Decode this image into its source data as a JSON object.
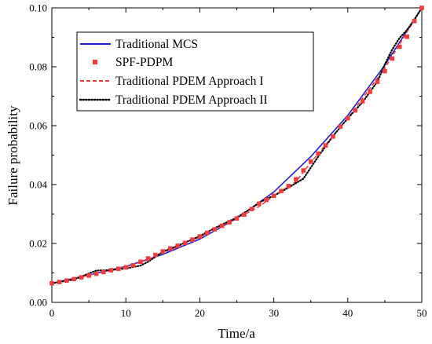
{
  "chart_data": {
    "type": "line",
    "title": "",
    "xlabel": "Time/a",
    "ylabel": "Failure probability",
    "xlim": [
      0,
      50
    ],
    "ylim": [
      0,
      0.1
    ],
    "xticks": [
      0,
      10,
      20,
      30,
      40,
      50
    ],
    "xtick_labels": [
      "0",
      "10",
      "20",
      "30",
      "40",
      "50"
    ],
    "yticks": [
      0,
      0.02,
      0.04,
      0.06,
      0.08,
      0.1
    ],
    "ytick_labels": [
      "0.00",
      "0.02",
      "0.04",
      "0.06",
      "0.08",
      "0.10"
    ],
    "grid": false,
    "legend": "top-left",
    "series": [
      {
        "name": "Traditional MCS",
        "style": "solid-line",
        "color": "#1f1fd6",
        "x": [
          0,
          5,
          10,
          15,
          20,
          25,
          30,
          35,
          40,
          45,
          50
        ],
        "y": [
          0.0065,
          0.0093,
          0.0122,
          0.0163,
          0.0215,
          0.0285,
          0.0375,
          0.0495,
          0.0635,
          0.0805,
          0.1
        ]
      },
      {
        "name": "SPF-PDPM",
        "style": "square-markers",
        "color": "#f03c3c",
        "x": [
          0,
          1,
          2,
          3,
          4,
          5,
          6,
          7,
          8,
          9,
          10,
          11,
          12,
          13,
          14,
          15,
          16,
          17,
          18,
          19,
          20,
          21,
          22,
          23,
          24,
          25,
          26,
          27,
          28,
          29,
          30,
          31,
          32,
          33,
          34,
          35,
          36,
          37,
          38,
          39,
          40,
          41,
          42,
          43,
          44,
          45,
          46,
          47,
          48,
          49,
          50
        ],
        "y": [
          0.0065,
          0.0069,
          0.0074,
          0.0079,
          0.0085,
          0.0091,
          0.0097,
          0.0103,
          0.0109,
          0.0114,
          0.0119,
          0.0126,
          0.0138,
          0.0149,
          0.0161,
          0.0173,
          0.0183,
          0.0192,
          0.0202,
          0.0213,
          0.0224,
          0.0236,
          0.0248,
          0.026,
          0.0272,
          0.0285,
          0.0298,
          0.0317,
          0.0335,
          0.0348,
          0.0362,
          0.0378,
          0.0395,
          0.0418,
          0.0448,
          0.0478,
          0.0505,
          0.0533,
          0.0563,
          0.0597,
          0.0625,
          0.0652,
          0.0683,
          0.0715,
          0.0749,
          0.0785,
          0.0828,
          0.0868,
          0.0902,
          0.0955,
          0.1
        ]
      },
      {
        "name": "Traditional PDEM Approach I",
        "style": "dashed-line",
        "color": "#f03c3c",
        "x": [
          0,
          5,
          10,
          13,
          15,
          20,
          25,
          28,
          30,
          33,
          35,
          40,
          45,
          50
        ],
        "y": [
          0.0065,
          0.0092,
          0.012,
          0.0145,
          0.0168,
          0.0222,
          0.0285,
          0.0325,
          0.0362,
          0.041,
          0.0475,
          0.0625,
          0.0795,
          0.1
        ]
      },
      {
        "name": "Traditional PDEM Approach II",
        "style": "dotted-line",
        "color": "#000000",
        "x": [
          0,
          3,
          5,
          6,
          8,
          10,
          12,
          13,
          15,
          17,
          20,
          22,
          25,
          27,
          28,
          29,
          30,
          32,
          34,
          36,
          38,
          40,
          42,
          44,
          45,
          46,
          47,
          48,
          49,
          50
        ],
        "y": [
          0.0065,
          0.0078,
          0.0098,
          0.0108,
          0.011,
          0.0115,
          0.0125,
          0.0138,
          0.0172,
          0.0192,
          0.0225,
          0.0252,
          0.0288,
          0.032,
          0.0338,
          0.0352,
          0.0362,
          0.039,
          0.042,
          0.0495,
          0.0565,
          0.0625,
          0.068,
          0.075,
          0.0808,
          0.0858,
          0.0898,
          0.0925,
          0.096,
          0.1
        ]
      }
    ]
  }
}
